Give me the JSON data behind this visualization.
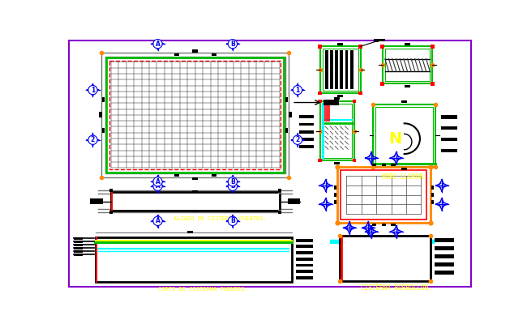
{
  "bg_color": "#ffffff",
  "border_color": "#8800cc",
  "labels": {
    "alzado": "ALZADO DE CISTERNA FUENTES.",
    "corte": "CORTE DE CISTERNA FUENTES.",
    "muro": "MURO LLORON.",
    "cisterna": "CISTERNA BORBOLLON."
  },
  "label_color": "#ffff00",
  "colors": {
    "blue": "#0000ee",
    "red": "#ff0000",
    "green": "#00bb00",
    "cyan": "#00ffff",
    "black": "#000000",
    "orange": "#ff8800",
    "tan_fill": "#d4956a",
    "gray": "#666666",
    "yellow": "#ffff00",
    "dark_red": "#cc0000"
  }
}
